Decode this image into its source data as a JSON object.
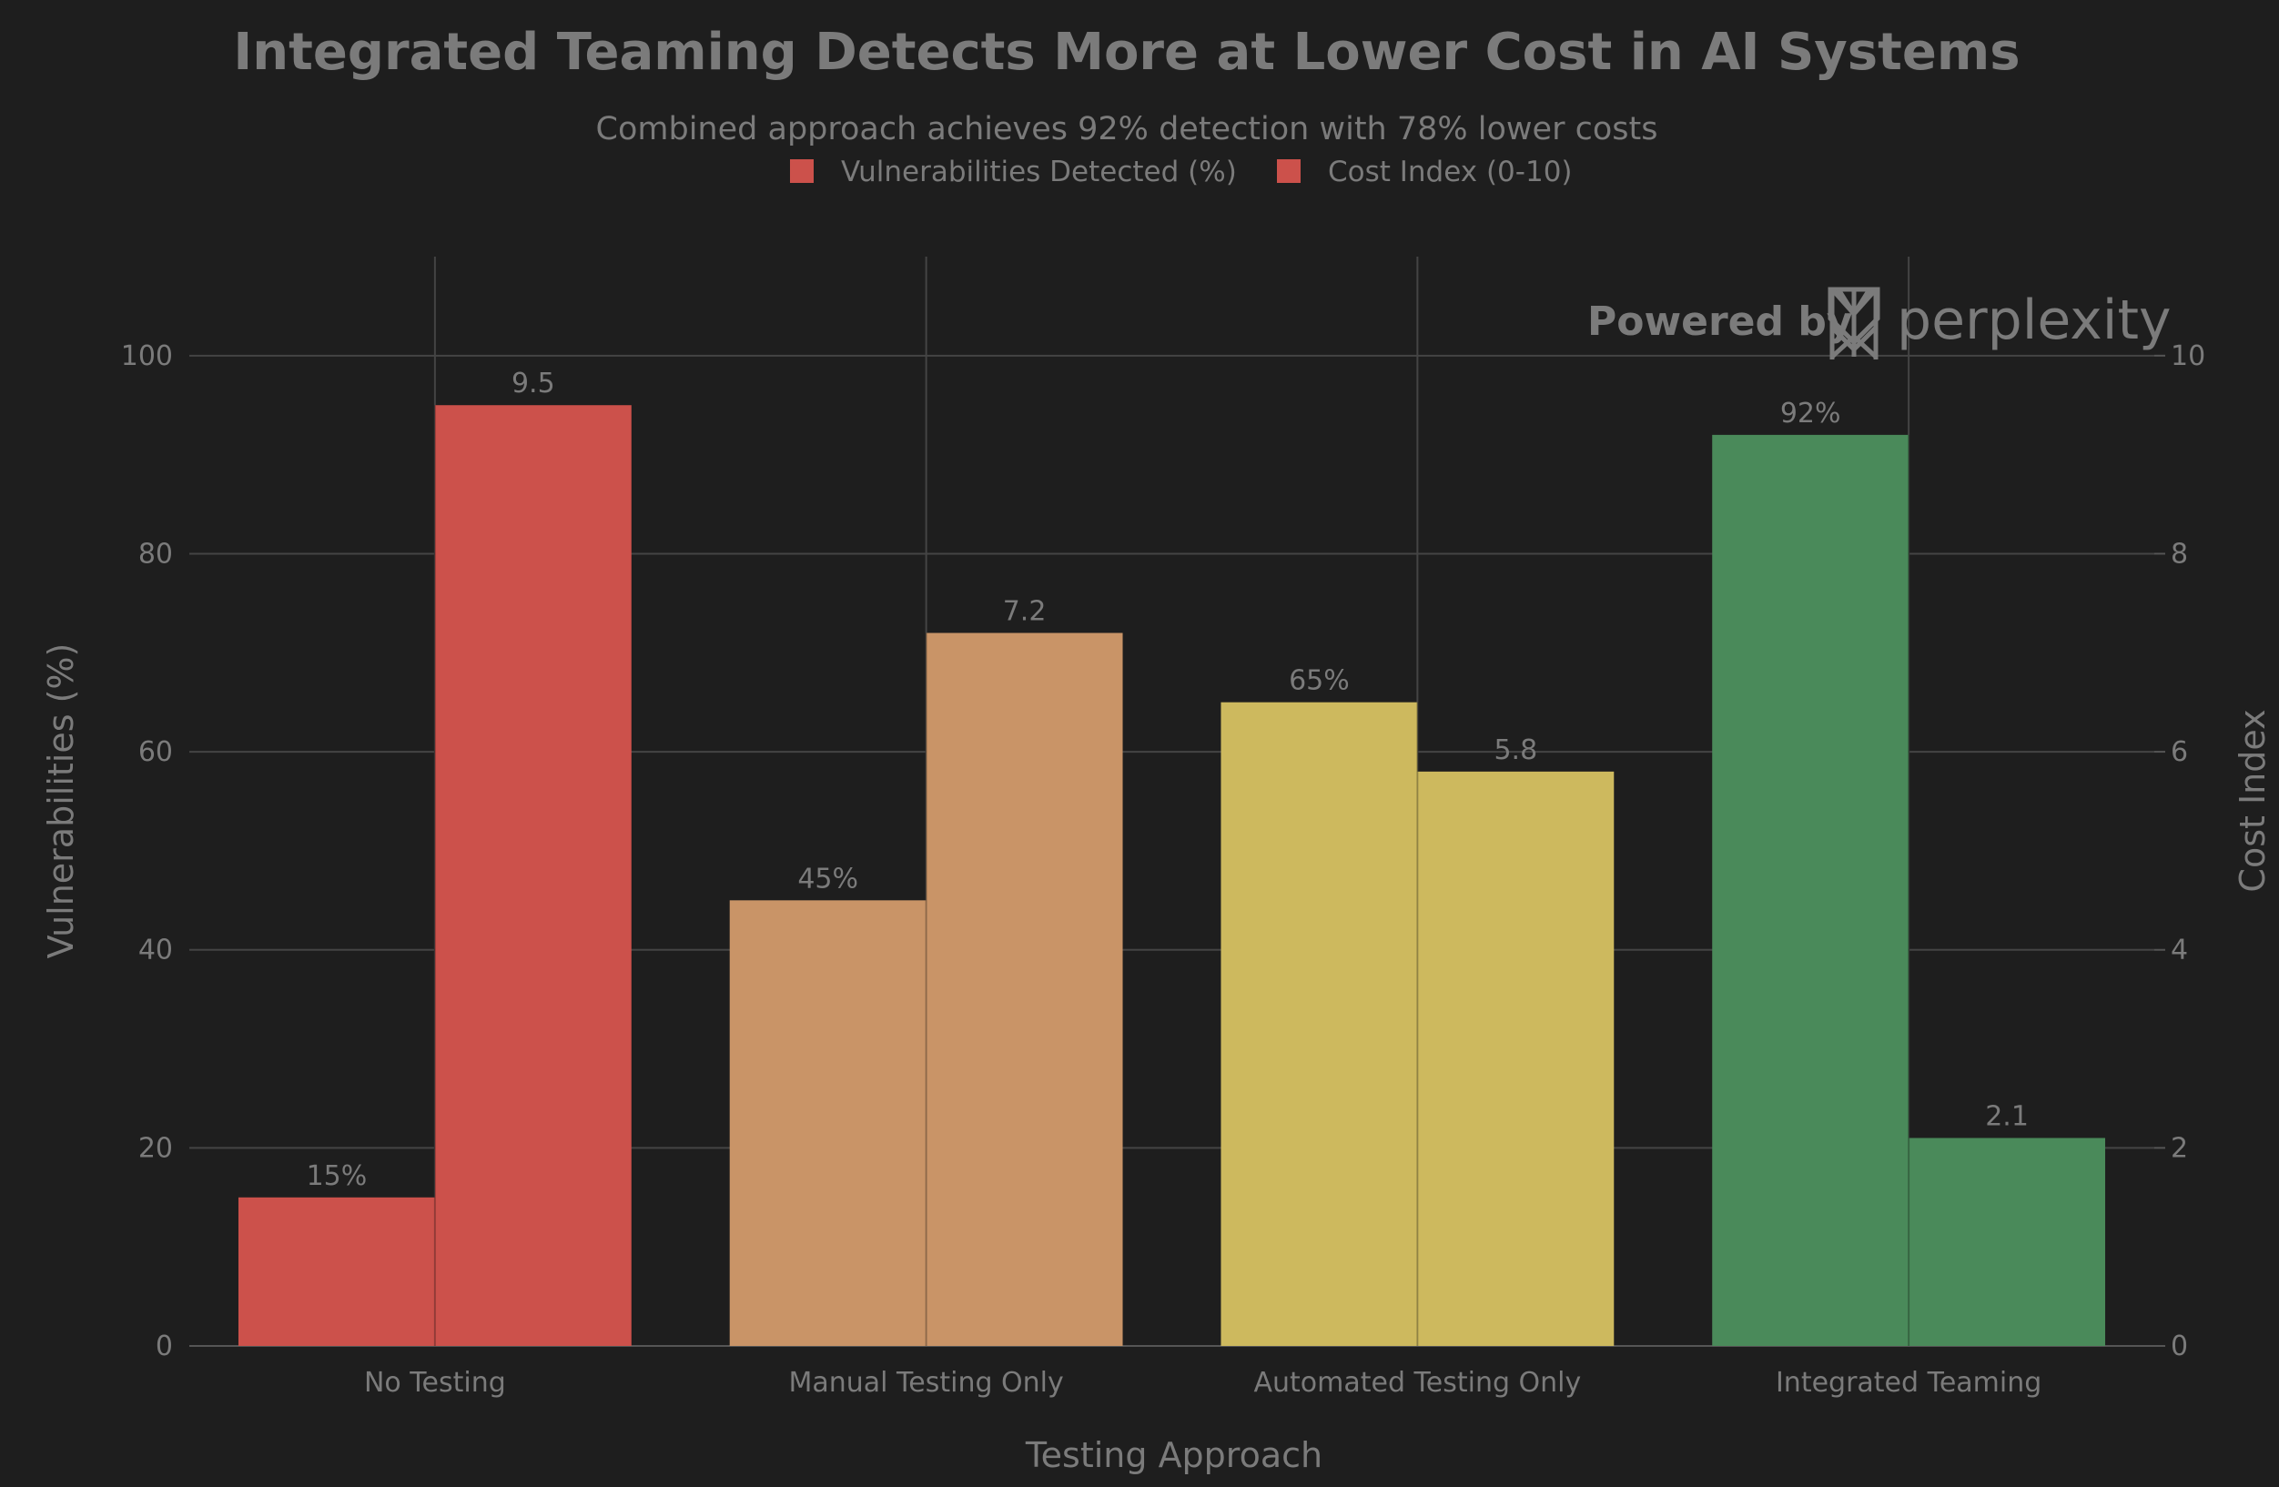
{
  "chart_data": {
    "type": "bar",
    "title": "Integrated Teaming Detects More at Lower Cost in AI Systems",
    "subtitle": "Combined approach achieves 92% detection with 78% lower costs",
    "xlabel": "Testing Approach",
    "ylabel": "Vulnerabilities (%)",
    "y2label": "Cost Index",
    "categories": [
      "No Testing",
      "Manual Testing Only",
      "Automated Testing Only",
      "Integrated Teaming"
    ],
    "category_colors": [
      "#cc514b",
      "#c99467",
      "#cdb95e",
      "#4a8a5a"
    ],
    "series": [
      {
        "name": "Vulnerabilities Detected (%)",
        "axis": "left",
        "values": [
          15,
          45,
          65,
          92
        ],
        "labels": [
          "15%",
          "45%",
          "65%",
          "92%"
        ]
      },
      {
        "name": "Cost Index (0-10)",
        "axis": "right",
        "values": [
          9.5,
          7.2,
          5.8,
          2.1
        ],
        "labels": [
          "9.5",
          "7.2",
          "5.8",
          "2.1"
        ]
      }
    ],
    "legend_color": "#cc514b",
    "ylim": [
      0,
      110
    ],
    "y2lim": [
      0,
      11
    ],
    "yticks": [
      0,
      20,
      40,
      60,
      80,
      100
    ],
    "y2ticks": [
      0,
      2,
      4,
      6,
      8,
      10
    ],
    "grid": true,
    "legend_position": "top-center"
  },
  "watermark": {
    "prefix": "Powered by",
    "brand": "perplexity"
  }
}
